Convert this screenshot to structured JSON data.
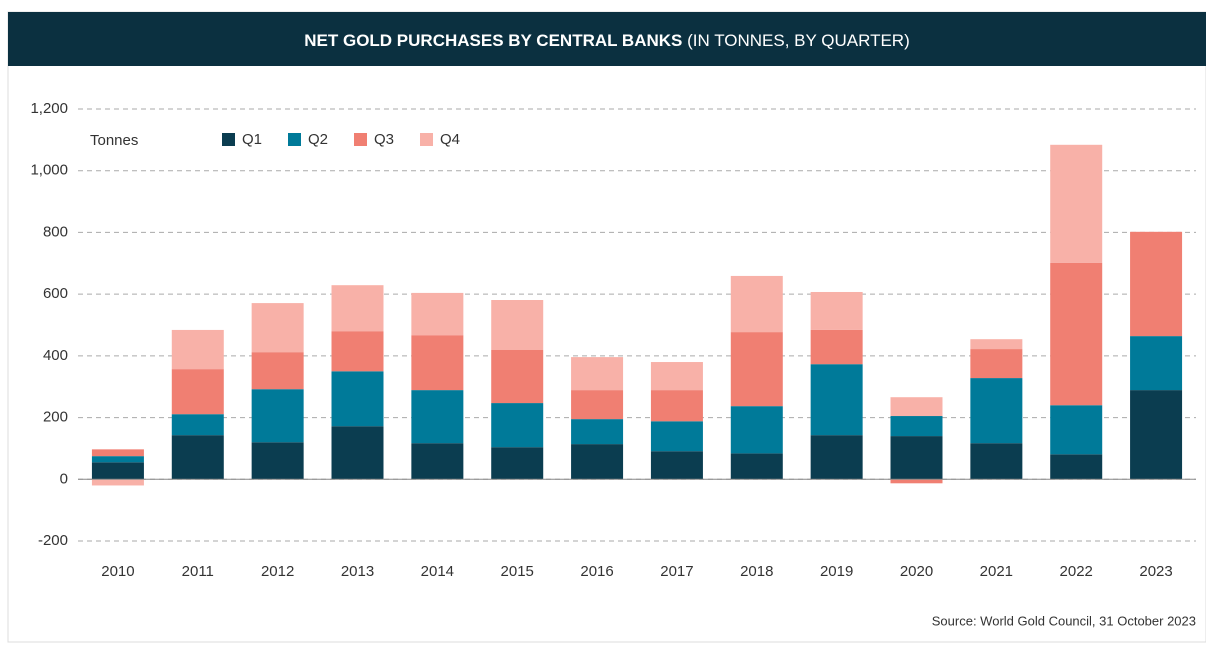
{
  "chart_data": {
    "type": "stacked_bar",
    "title": "NET GOLD PURCHASES BY CENTRAL BANKS",
    "subtitle": "(IN TONNES, BY QUARTER)",
    "y_label": "Tonnes",
    "source": "Source: World Gold Council, 31 October 2023",
    "categories": [
      "2010",
      "2011",
      "2012",
      "2013",
      "2014",
      "2015",
      "2016",
      "2017",
      "2018",
      "2019",
      "2020",
      "2021",
      "2022",
      "2023"
    ],
    "series": [
      {
        "name": "Q1",
        "color": "#0b3d50",
        "values": [
          55,
          143,
          120,
          172,
          117,
          104,
          114,
          91,
          84,
          143,
          140,
          117,
          81,
          289
        ]
      },
      {
        "name": "Q2",
        "color": "#007a99",
        "values": [
          20,
          68,
          172,
          178,
          172,
          143,
          81,
          97,
          153,
          230,
          65,
          211,
          159,
          175
        ]
      },
      {
        "name": "Q3",
        "color": "#f07f72",
        "values": [
          22,
          146,
          120,
          130,
          178,
          172,
          94,
          101,
          240,
          111,
          -13,
          94,
          461,
          338
        ]
      },
      {
        "name": "Q4",
        "color": "#f8b1a8",
        "values": [
          -20,
          127,
          159,
          149,
          137,
          162,
          107,
          91,
          182,
          123,
          61,
          32,
          383,
          null
        ]
      }
    ],
    "ylim": [
      -200,
      1200
    ],
    "yticks": [
      -200,
      0,
      200,
      400,
      600,
      800,
      {
        "value": 1000,
        "label": "1,000"
      },
      {
        "value": 1200,
        "label": "1,200"
      }
    ],
    "grid": true
  }
}
